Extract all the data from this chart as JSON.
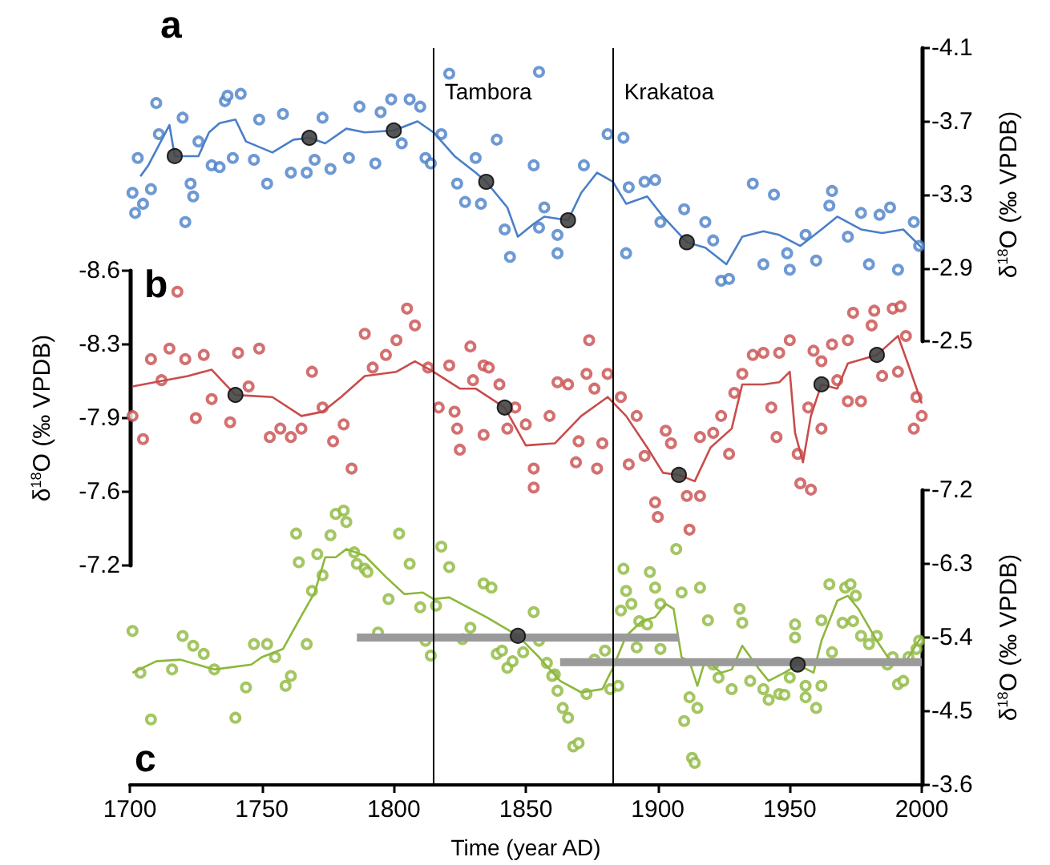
{
  "chart_data": [
    {
      "type": "scatter",
      "title": "a",
      "ylabel": "δ$^{18}$O (‰ VPDB)",
      "xlim": [
        1700,
        2000
      ],
      "ylim": [
        -2.5,
        -4.1
      ],
      "yticks": [
        -4.1,
        -3.7,
        -3.3,
        -2.9,
        -2.5
      ],
      "tick_labels": "y",
      "ref_lines": [
        {
          "axis": "x",
          "value": 1815,
          "label": "Tambora"
        },
        {
          "axis": "x",
          "value": 1883,
          "label": "Krakatoa"
        }
      ],
      "series": [
        {
          "marker": "circle",
          "color": "#4a7fc8",
          "x": [
            1701,
            1702,
            1705,
            1703,
            1708,
            1710,
            1711,
            1720,
            1721,
            1723,
            1724,
            1726,
            1731,
            1734,
            1736,
            1737,
            1742,
            1739,
            1747,
            1752,
            1749,
            1758,
            1761,
            1767,
            1770,
            1776,
            1773,
            1783,
            1787,
            1793,
            1795,
            1799,
            1803,
            1806,
            1810,
            1812,
            1814,
            1821,
            1818,
            1824,
            1827,
            1831,
            1833,
            1839,
            1842,
            1844,
            1853,
            1855,
            1862,
            1855,
            1857,
            1862,
            1872,
            1881,
            1887,
            1889,
            1888,
            1895,
            1899,
            1901,
            1910,
            1918,
            1921,
            1924,
            1927,
            1936,
            1940,
            1944,
            1950,
            1949,
            1956,
            1960,
            1966,
            1965,
            1972,
            1977,
            1980,
            1984,
            1988,
            1991,
            1997,
            1999
          ],
          "values": [
            -3.31,
            -3.2,
            -3.25,
            -3.5,
            -3.33,
            -3.8,
            -3.63,
            -3.72,
            -3.15,
            -3.36,
            -3.29,
            -3.59,
            -3.46,
            -3.45,
            -3.81,
            -3.84,
            -3.85,
            -3.5,
            -3.49,
            -3.36,
            -3.71,
            -3.74,
            -3.42,
            -3.42,
            -3.49,
            -3.44,
            -3.72,
            -3.5,
            -3.78,
            -3.47,
            -3.75,
            -3.82,
            -3.58,
            -3.82,
            -3.78,
            -3.5,
            -3.47,
            -3.96,
            -3.63,
            -3.36,
            -3.26,
            -3.5,
            -3.25,
            -3.6,
            -3.11,
            -2.96,
            -3.46,
            -3.12,
            -3.08,
            -3.97,
            -3.23,
            -2.98,
            -3.46,
            -3.63,
            -3.61,
            -3.34,
            -2.98,
            -3.37,
            -3.38,
            -3.15,
            -3.22,
            -3.15,
            -3.05,
            -2.83,
            -2.84,
            -3.36,
            -2.92,
            -3.3,
            -2.89,
            -2.98,
            -3.08,
            -2.94,
            -3.32,
            -3.24,
            -3.07,
            -3.2,
            -2.92,
            -3.19,
            -3.23,
            -2.89,
            -3.15,
            -3.02
          ]
        },
        {
          "type": "line",
          "marker": "none",
          "color": "#4a7fc8",
          "x": [
            1704,
            1707,
            1715,
            1717,
            1726,
            1730,
            1734,
            1740,
            1744,
            1754,
            1762,
            1768,
            1774,
            1782,
            1789,
            1800,
            1809,
            1815,
            1823,
            1831,
            1835,
            1843,
            1847,
            1853,
            1857,
            1866,
            1871,
            1877,
            1883,
            1888,
            1896,
            1902,
            1911,
            1918,
            1926,
            1932,
            1940,
            1946,
            1954,
            1962,
            1968,
            1977,
            1985,
            1993,
            2000
          ],
          "values": [
            -3.4,
            -3.46,
            -3.68,
            -3.51,
            -3.51,
            -3.64,
            -3.69,
            -3.71,
            -3.59,
            -3.53,
            -3.6,
            -3.61,
            -3.58,
            -3.66,
            -3.64,
            -3.65,
            -3.7,
            -3.64,
            -3.51,
            -3.42,
            -3.37,
            -3.23,
            -3.07,
            -3.14,
            -3.18,
            -3.16,
            -3.31,
            -3.42,
            -3.37,
            -3.25,
            -3.29,
            -3.18,
            -3.04,
            -3.01,
            -2.92,
            -3.07,
            -3.1,
            -3.08,
            -3.02,
            -3.11,
            -3.18,
            -3.11,
            -3.09,
            -3.11,
            -3.01
          ]
        },
        {
          "marker": "circle",
          "color": "#444444",
          "x": [
            1717,
            1768,
            1800,
            1835,
            1866,
            1911
          ],
          "values": [
            -3.51,
            -3.61,
            -3.65,
            -3.37,
            -3.16,
            -3.04
          ]
        }
      ]
    },
    {
      "type": "scatter",
      "title": "b",
      "ylabel": "δ$^{18}$O (‰ VPDB)",
      "xlim": [
        1700,
        2000
      ],
      "ylim": [
        -7.2,
        -8.6
      ],
      "yticks": [
        -8.6,
        {
          "value": -8.25,
          "label": "-8.3"
        },
        -7.9,
        {
          "value": -7.55,
          "label": "-7.6"
        },
        -7.2
      ],
      "tick_labels": "y",
      "ref_lines": [
        {
          "axis": "x",
          "value": 1815
        },
        {
          "axis": "x",
          "value": 1883
        }
      ],
      "series": [
        {
          "marker": "circle",
          "color": "#c94c4c",
          "x": [
            1701,
            1705,
            1708,
            1712,
            1715,
            1718,
            1721,
            1725,
            1728,
            1731,
            1738,
            1741,
            1745,
            1749,
            1753,
            1757,
            1761,
            1765,
            1769,
            1773,
            1777,
            1781,
            1784,
            1789,
            1792,
            1797,
            1801,
            1805,
            1808,
            1813,
            1817,
            1821,
            1823,
            1824,
            1825,
            1829,
            1830,
            1834,
            1834,
            1836,
            1840,
            1843,
            1846,
            1850,
            1853,
            1853,
            1859,
            1862,
            1866,
            1870,
            1869,
            1874,
            1873,
            1876,
            1879,
            1877,
            1881,
            1886,
            1889,
            1892,
            1895,
            1899,
            1900,
            1903,
            1905,
            1912,
            1911,
            1916,
            1916,
            1921,
            1924,
            1927,
            1929,
            1932,
            1936,
            1940,
            1943,
            1946,
            1945,
            1950,
            1953,
            1954,
            1958,
            1957,
            1959,
            1962,
            1962,
            1966,
            1968,
            1972,
            1972,
            1974,
            1977,
            1981,
            1982,
            1985,
            1989,
            1992,
            1991,
            1994,
            1997,
            1998,
            2000
          ],
          "values": [
            -7.91,
            -7.8,
            -8.18,
            -8.08,
            -8.23,
            -8.5,
            -8.18,
            -7.9,
            -8.2,
            -7.99,
            -7.88,
            -8.21,
            -8.05,
            -8.23,
            -7.81,
            -7.85,
            -7.81,
            -7.85,
            -8.12,
            -7.95,
            -7.79,
            -7.87,
            -7.66,
            -8.3,
            -8.14,
            -8.2,
            -8.27,
            -8.42,
            -8.34,
            -8.14,
            -7.95,
            -8.15,
            -7.93,
            -7.85,
            -7.75,
            -8.24,
            -8.08,
            -7.82,
            -8.15,
            -8.14,
            -8.06,
            -7.85,
            -7.95,
            -7.87,
            -7.66,
            -7.57,
            -7.91,
            -8.07,
            -8.06,
            -7.79,
            -7.69,
            -8.27,
            -8.11,
            -8.04,
            -7.78,
            -7.66,
            -8.11,
            -8.0,
            -7.68,
            -7.91,
            -7.72,
            -7.5,
            -7.43,
            -7.84,
            -7.78,
            -7.37,
            -7.53,
            -7.53,
            -7.81,
            -7.83,
            -7.91,
            -7.73,
            -8.02,
            -8.11,
            -8.2,
            -8.21,
            -7.95,
            -8.21,
            -7.81,
            -8.27,
            -7.73,
            -7.59,
            -7.56,
            -7.95,
            -8.22,
            -7.85,
            -8.17,
            -8.25,
            -8.08,
            -7.98,
            -8.27,
            -8.4,
            -7.98,
            -8.34,
            -8.41,
            -8.1,
            -8.42,
            -8.43,
            -8.12,
            -8.29,
            -7.85,
            -8.0,
            -7.91
          ]
        },
        {
          "type": "line",
          "marker": "none",
          "color": "#c94c4c",
          "x": [
            1701,
            1722,
            1731,
            1740,
            1754,
            1765,
            1773,
            1780,
            1789,
            1801,
            1808,
            1815,
            1825,
            1831,
            1842,
            1850,
            1861,
            1871,
            1881,
            1888,
            1896,
            1902,
            1908,
            1914,
            1920,
            1928,
            1932,
            1940,
            1946,
            1950,
            1952,
            1955,
            1958,
            1962,
            1968,
            1972,
            1983,
            1991,
            1995,
            2000
          ],
          "values": [
            -8.05,
            -8.1,
            -8.13,
            -8.01,
            -8.0,
            -7.91,
            -7.93,
            -8.0,
            -8.1,
            -8.12,
            -8.17,
            -8.12,
            -8.04,
            -8.04,
            -7.95,
            -7.77,
            -7.78,
            -7.91,
            -8.0,
            -7.91,
            -7.76,
            -7.64,
            -7.63,
            -7.6,
            -7.76,
            -7.85,
            -8.06,
            -8.06,
            -8.07,
            -8.12,
            -7.83,
            -7.69,
            -7.91,
            -8.06,
            -8.04,
            -8.16,
            -8.2,
            -8.29,
            -8.15,
            -7.97
          ]
        },
        {
          "marker": "circle",
          "color": "#444444",
          "x": [
            1740,
            1842,
            1908,
            1962,
            1983
          ],
          "values": [
            -8.01,
            -7.95,
            -7.63,
            -8.06,
            -8.2
          ]
        }
      ]
    },
    {
      "type": "scatter",
      "title": "c",
      "xlabel": "Time (year AD)",
      "ylabel": "δ$^{18}$O (‰ VPDB)",
      "xlim": [
        1700,
        2000
      ],
      "xticks": [
        1700,
        1750,
        1800,
        1850,
        1900,
        1950,
        2000
      ],
      "ylim": [
        -3.6,
        -7.2
      ],
      "yticks": [
        -7.2,
        -6.3,
        -5.4,
        -4.5,
        -3.6
      ],
      "ref_lines": [
        {
          "axis": "x",
          "value": 1815
        },
        {
          "axis": "x",
          "value": 1883
        }
      ],
      "series": [
        {
          "marker": "circle",
          "color": "#8db83c",
          "x": [
            1701,
            1704,
            1708,
            1716,
            1720,
            1724,
            1728,
            1732,
            1740,
            1744,
            1747,
            1752,
            1755,
            1759,
            1761,
            1763,
            1764,
            1767,
            1769,
            1771,
            1773,
            1776,
            1778,
            1781,
            1782,
            1785,
            1786,
            1789,
            1790,
            1794,
            1798,
            1802,
            1806,
            1810,
            1812,
            1814,
            1816,
            1818,
            1821,
            1826,
            1829,
            1834,
            1837,
            1839,
            1841,
            1843,
            1845,
            1849,
            1853,
            1855,
            1858,
            1861,
            1862,
            1860,
            1864,
            1866,
            1868,
            1870,
            1873,
            1876,
            1880,
            1882,
            1885,
            1886,
            1887,
            1888,
            1890,
            1892,
            1893,
            1896,
            1897,
            1899,
            1901,
            1901,
            1907,
            1909,
            1910,
            1912,
            1913,
            1914,
            1915,
            1916,
            1919,
            1921,
            1923,
            1928,
            1931,
            1932,
            1935,
            1940,
            1942,
            1946,
            1948,
            1950,
            1952,
            1952,
            1956,
            1956,
            1960,
            1962,
            1962,
            1965,
            1966,
            1970,
            1971,
            1973,
            1974,
            1975,
            1977,
            1980,
            1983,
            1987,
            1989,
            1991,
            1993,
            1995,
            1998,
            1999
          ],
          "values": [
            -5.48,
            -4.97,
            -4.4,
            -5.01,
            -5.42,
            -5.3,
            -5.2,
            -5.01,
            -4.42,
            -4.79,
            -5.32,
            -5.32,
            -5.16,
            -4.81,
            -4.93,
            -6.67,
            -6.32,
            -5.32,
            -5.97,
            -6.42,
            -6.16,
            -6.65,
            -6.91,
            -6.95,
            -6.81,
            -6.44,
            -6.3,
            -6.24,
            -6.2,
            -5.46,
            -5.87,
            -6.67,
            -6.3,
            -5.77,
            -5.36,
            -5.18,
            -5.79,
            -6.51,
            -6.26,
            -5.38,
            -5.52,
            -6.06,
            -6.01,
            -5.2,
            -5.24,
            -5.03,
            -5.11,
            -5.22,
            -5.71,
            -5.36,
            -5.09,
            -4.95,
            -4.75,
            -4.93,
            -4.54,
            -4.42,
            -4.07,
            -4.11,
            -4.71,
            -5.13,
            -5.24,
            -4.77,
            -4.81,
            -5.73,
            -6.24,
            -5.97,
            -5.81,
            -5.28,
            -5.6,
            -5.56,
            -6.2,
            -6.01,
            -5.81,
            -5.26,
            -6.48,
            -5.95,
            -4.38,
            -4.67,
            -3.93,
            -3.87,
            -4.54,
            -6.01,
            -5.61,
            -5.07,
            -4.91,
            -4.77,
            -5.75,
            -5.58,
            -4.87,
            -4.77,
            -4.64,
            -4.71,
            -4.7,
            -4.91,
            -5.56,
            -5.4,
            -4.81,
            -4.67,
            -4.54,
            -4.81,
            -5.61,
            -6.05,
            -5.22,
            -5.58,
            -6.01,
            -6.05,
            -5.6,
            -5.91,
            -5.42,
            -5.32,
            -5.42,
            -5.07,
            -5.16,
            -4.83,
            -4.87,
            -5.16,
            -5.26,
            -5.36
          ]
        },
        {
          "type": "line",
          "marker": "none",
          "color": "#8db83c",
          "x": [
            1701,
            1710,
            1719,
            1732,
            1746,
            1750,
            1758,
            1764,
            1770,
            1774,
            1778,
            1782,
            1789,
            1797,
            1804,
            1811,
            1815,
            1821,
            1835,
            1843,
            1847,
            1855,
            1863,
            1871,
            1879,
            1883,
            1888,
            1894,
            1899,
            1903,
            1906,
            1909,
            1912,
            1915,
            1918,
            1924,
            1928,
            1932,
            1938,
            1942,
            1948,
            1953,
            1959,
            1962,
            1968,
            1972,
            1976,
            1983,
            1989,
            1994,
            2000
          ],
          "values": [
            -4.97,
            -5.11,
            -5.13,
            -5.01,
            -5.07,
            -5.16,
            -5.26,
            -5.61,
            -5.95,
            -6.38,
            -6.38,
            -6.48,
            -6.4,
            -6.14,
            -5.93,
            -5.95,
            -5.87,
            -5.89,
            -5.65,
            -5.5,
            -5.42,
            -5.16,
            -4.87,
            -4.73,
            -4.77,
            -5.03,
            -5.42,
            -5.6,
            -5.65,
            -5.81,
            -5.75,
            -5.16,
            -5.11,
            -4.81,
            -5.13,
            -4.97,
            -5.01,
            -5.3,
            -5.03,
            -4.87,
            -4.97,
            -5.07,
            -4.97,
            -5.36,
            -5.85,
            -5.91,
            -5.75,
            -5.36,
            -5.07,
            -5.11,
            -5.42
          ]
        },
        {
          "type": "line",
          "marker": "none",
          "color": "#9a9a9a",
          "x": [
            1786,
            1908
          ],
          "values": [
            -5.4,
            -5.4
          ]
        },
        {
          "type": "line",
          "marker": "none",
          "color": "#9a9a9a",
          "x": [
            1863,
            2000
          ],
          "values": [
            -5.1,
            -5.1
          ]
        },
        {
          "marker": "circle",
          "color": "#444444",
          "x": [
            1847,
            1953
          ],
          "values": [
            -5.42,
            -5.07
          ]
        }
      ]
    }
  ]
}
